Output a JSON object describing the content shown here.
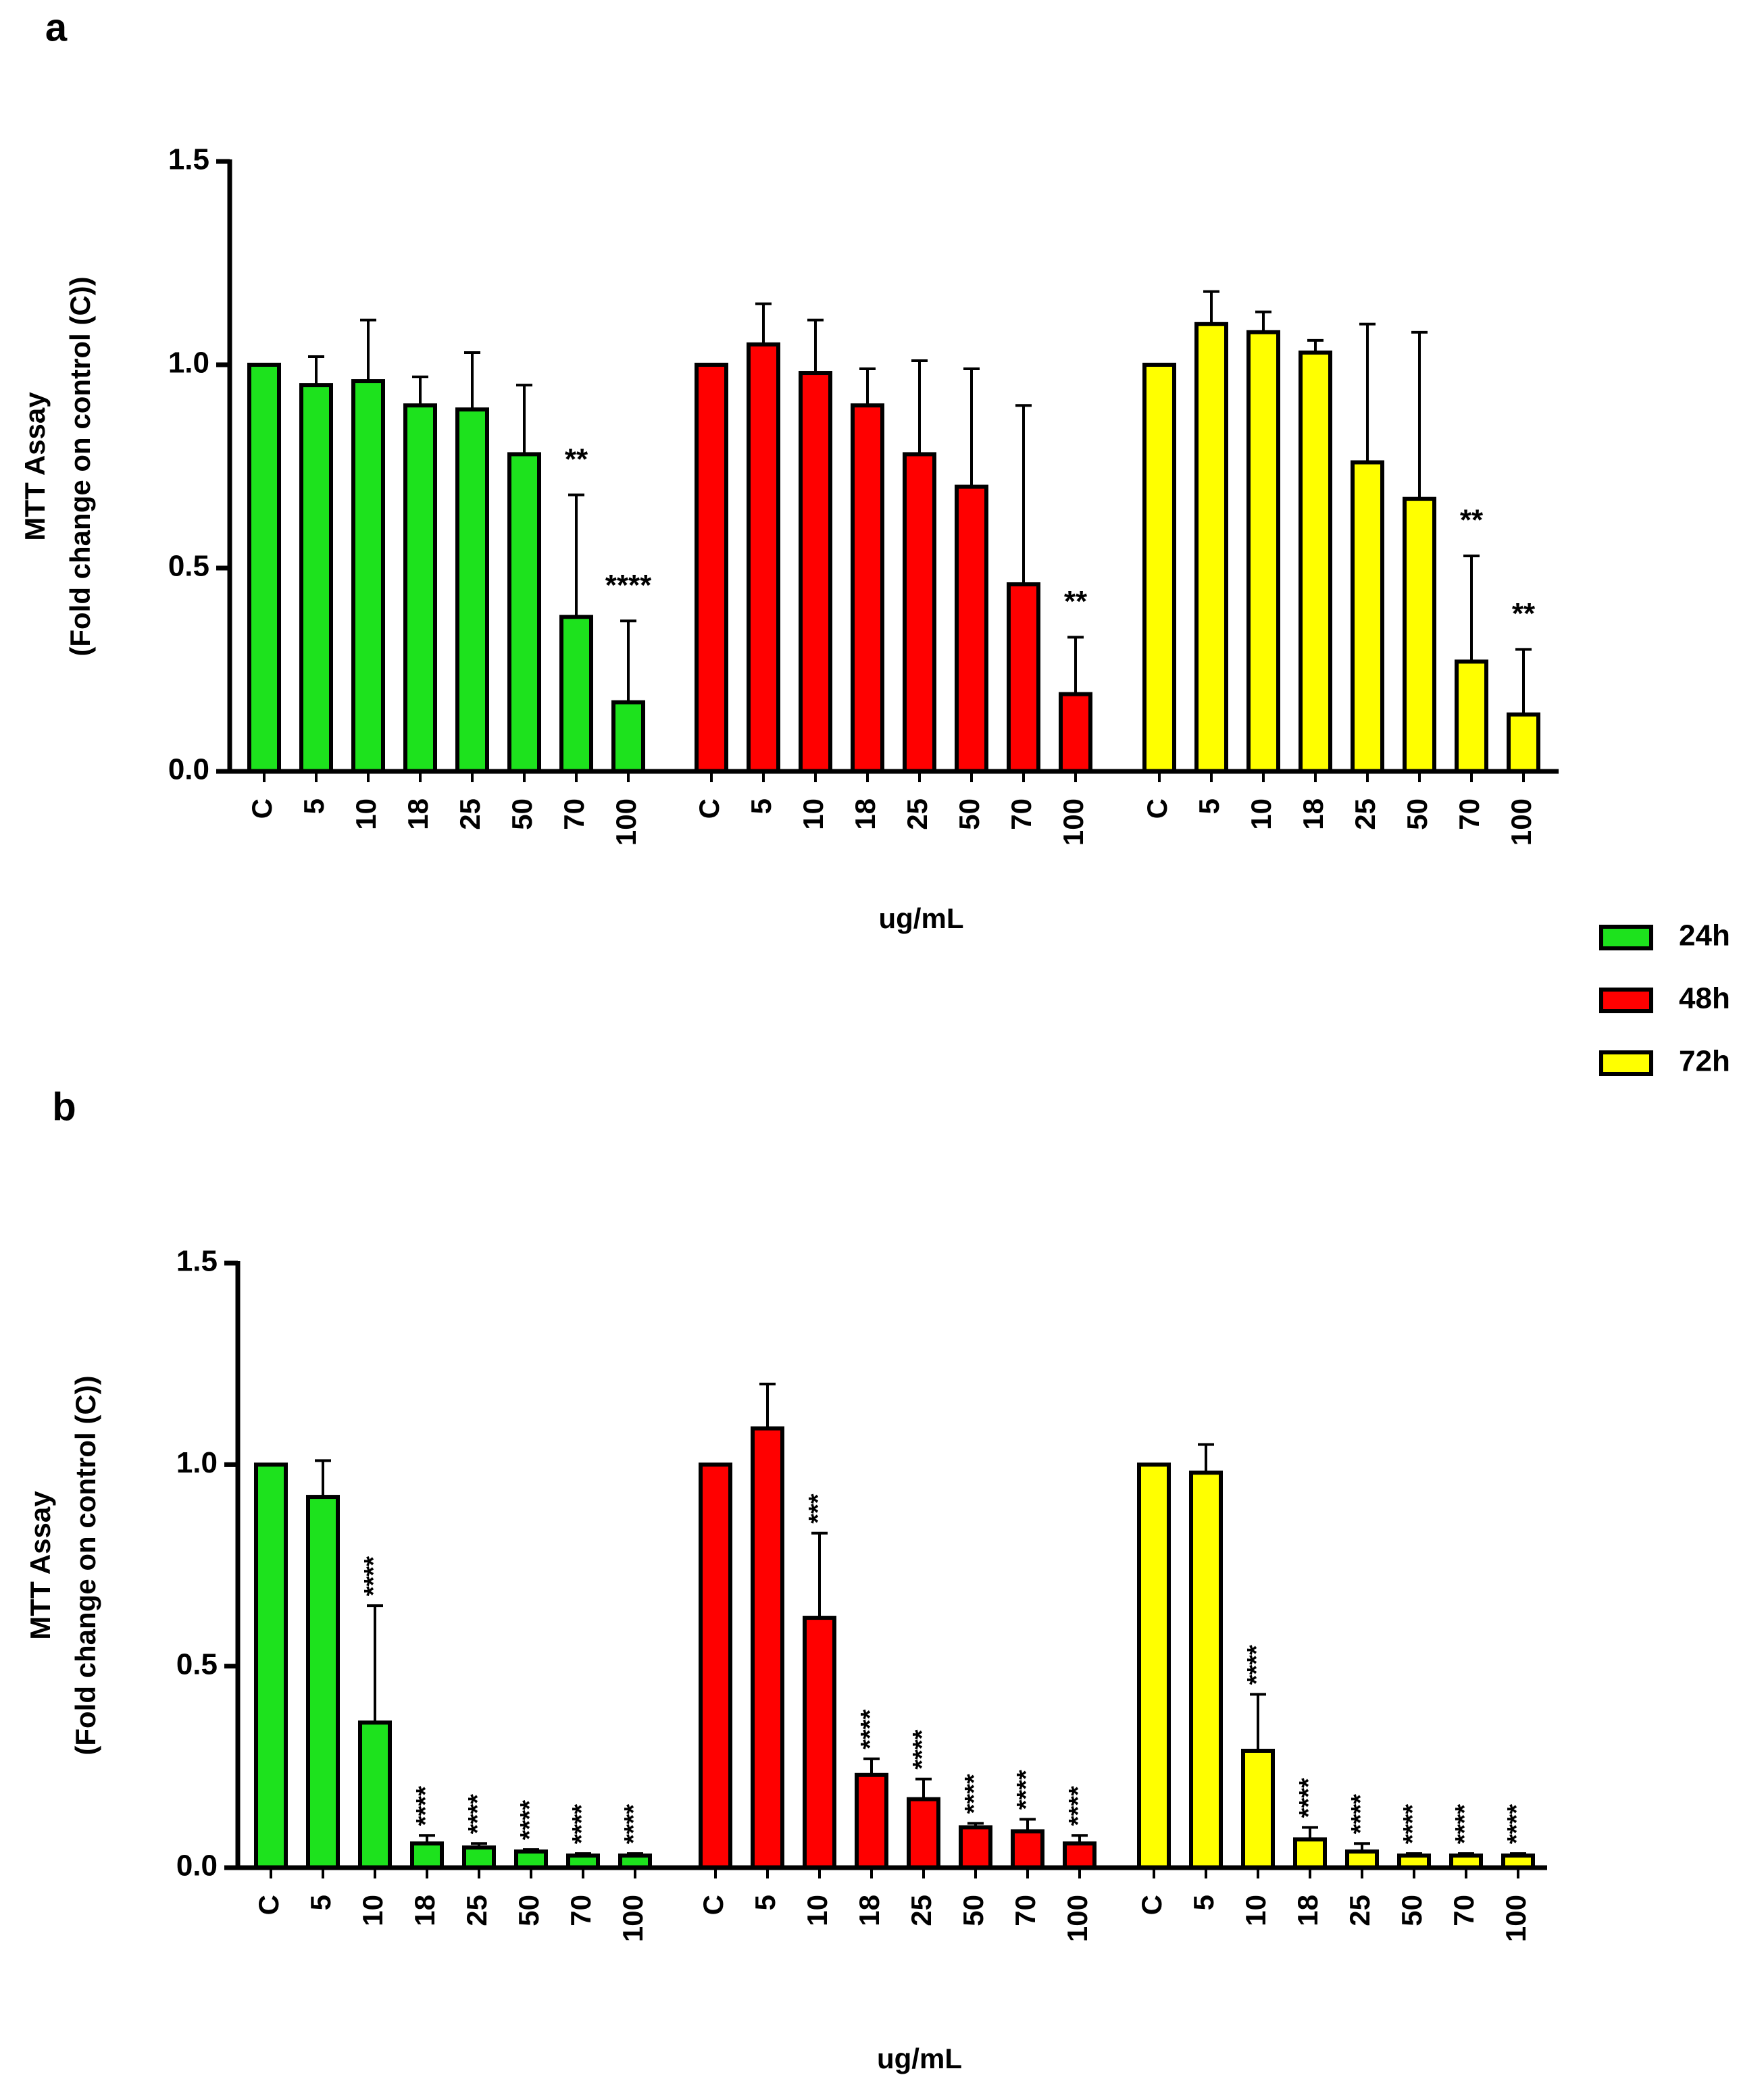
{
  "chart_data": [
    {
      "type": "bar",
      "panel_label": "a",
      "ylabel": [
        "MTT Assay",
        "(Fold change on control (C))"
      ],
      "xlabel": "ug/mL",
      "categories": [
        "C",
        "5",
        "10",
        "18",
        "25",
        "50",
        "70",
        "100"
      ],
      "ylim": [
        0,
        1.5
      ],
      "yticks": [
        {
          "value": 0,
          "label": "0.0"
        },
        {
          "value": 0.5,
          "label": "0.5"
        },
        {
          "value": 1,
          "label": "1.0"
        },
        {
          "value": 1.5,
          "label": "1.5"
        }
      ],
      "annotation_orientation": "horizontal",
      "legend": "right",
      "series": [
        {
          "name": "24h",
          "color": "#1de21d",
          "values": [
            1.0,
            0.95,
            0.96,
            0.9,
            0.89,
            0.78,
            0.38,
            0.17
          ],
          "errors": [
            0,
            0.07,
            0.15,
            0.07,
            0.14,
            0.17,
            0.3,
            0.2
          ],
          "annotations": [
            null,
            null,
            null,
            null,
            null,
            null,
            "**",
            "****"
          ]
        },
        {
          "name": "48h",
          "color": "#ff0000",
          "values": [
            1.0,
            1.05,
            0.98,
            0.9,
            0.78,
            0.7,
            0.46,
            0.19
          ],
          "errors": [
            0,
            0.1,
            0.13,
            0.09,
            0.23,
            0.29,
            0.44,
            0.14
          ],
          "annotations": [
            null,
            null,
            null,
            null,
            null,
            null,
            null,
            "**"
          ]
        },
        {
          "name": "72h",
          "color": "#ffff00",
          "values": [
            1.0,
            1.1,
            1.08,
            1.03,
            0.76,
            0.67,
            0.27,
            0.14
          ],
          "errors": [
            0,
            0.08,
            0.05,
            0.03,
            0.34,
            0.41,
            0.26,
            0.16
          ],
          "annotations": [
            null,
            null,
            null,
            null,
            null,
            null,
            "**",
            "**"
          ]
        }
      ]
    },
    {
      "type": "bar",
      "panel_label": "b",
      "ylabel": [
        "MTT Assay",
        "(Fold change on control (C))"
      ],
      "xlabel": "ug/mL",
      "categories": [
        "C",
        "5",
        "10",
        "18",
        "25",
        "50",
        "70",
        "100"
      ],
      "ylim": [
        0,
        1.5
      ],
      "yticks": [
        {
          "value": 0,
          "label": "0.0"
        },
        {
          "value": 0.5,
          "label": "0.5"
        },
        {
          "value": 1,
          "label": "1.0"
        },
        {
          "value": 1.5,
          "label": "1.5"
        }
      ],
      "annotation_orientation": "vertical",
      "series": [
        {
          "color": "#1de21d",
          "values": [
            1.0,
            0.92,
            0.36,
            0.06,
            0.05,
            0.04,
            0.03,
            0.03
          ],
          "errors": [
            0,
            0.09,
            0.29,
            0.02,
            0.01,
            0.005,
            0.005,
            0.005
          ],
          "annotations": [
            null,
            null,
            "****",
            "****",
            "****",
            "****",
            "****",
            "****"
          ]
        },
        {
          "color": "#ff0000",
          "values": [
            1.0,
            1.09,
            0.62,
            0.23,
            0.17,
            0.1,
            0.09,
            0.06
          ],
          "errors": [
            0,
            0.11,
            0.21,
            0.04,
            0.05,
            0.01,
            0.03,
            0.02
          ],
          "annotations": [
            null,
            null,
            "***",
            "****",
            "****",
            "****",
            "****",
            "****"
          ]
        },
        {
          "color": "#ffff00",
          "values": [
            1.0,
            0.98,
            0.29,
            0.07,
            0.04,
            0.03,
            0.03,
            0.03
          ],
          "errors": [
            0,
            0.07,
            0.14,
            0.03,
            0.02,
            0.005,
            0.005,
            0.005
          ],
          "annotations": [
            null,
            null,
            "****",
            "****",
            "****",
            "****",
            "****",
            "****"
          ]
        }
      ]
    }
  ]
}
